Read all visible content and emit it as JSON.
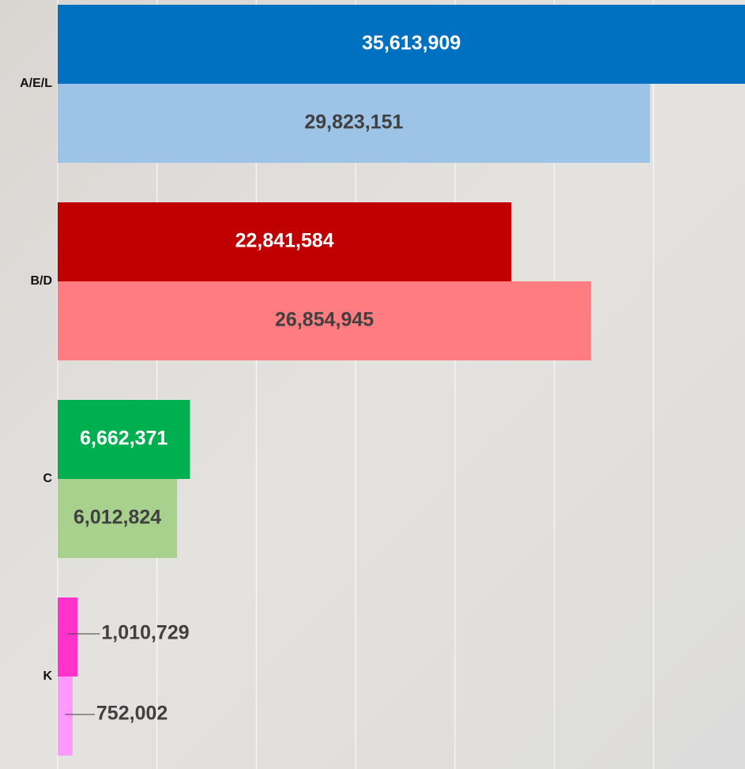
{
  "chart_data": {
    "type": "bar",
    "orientation": "horizontal",
    "categories": [
      "A/E/L",
      "B/D",
      "C",
      "K"
    ],
    "series": [
      {
        "colors": [
          "#0070c0",
          "#c00000",
          "#00b050",
          "#ff33cc"
        ],
        "values": [
          35613909,
          22841584,
          6662371,
          1010729
        ],
        "value_labels": [
          "35,613,909",
          "22,841,584",
          "6,662,371",
          "1,010,729"
        ]
      },
      {
        "colors": [
          "#9dc3e6",
          "#ff7c80",
          "#a9d18e",
          "#ff99ff"
        ],
        "values": [
          29823151,
          26854945,
          6012824,
          752002
        ],
        "value_labels": [
          "29,823,151",
          "26,854,945",
          "6,012,824",
          "752,002"
        ]
      }
    ],
    "xlim": [
      0,
      35000000
    ],
    "xticks": [
      0,
      5000000,
      10000000,
      15000000,
      20000000,
      25000000,
      30000000
    ],
    "grid": true
  }
}
